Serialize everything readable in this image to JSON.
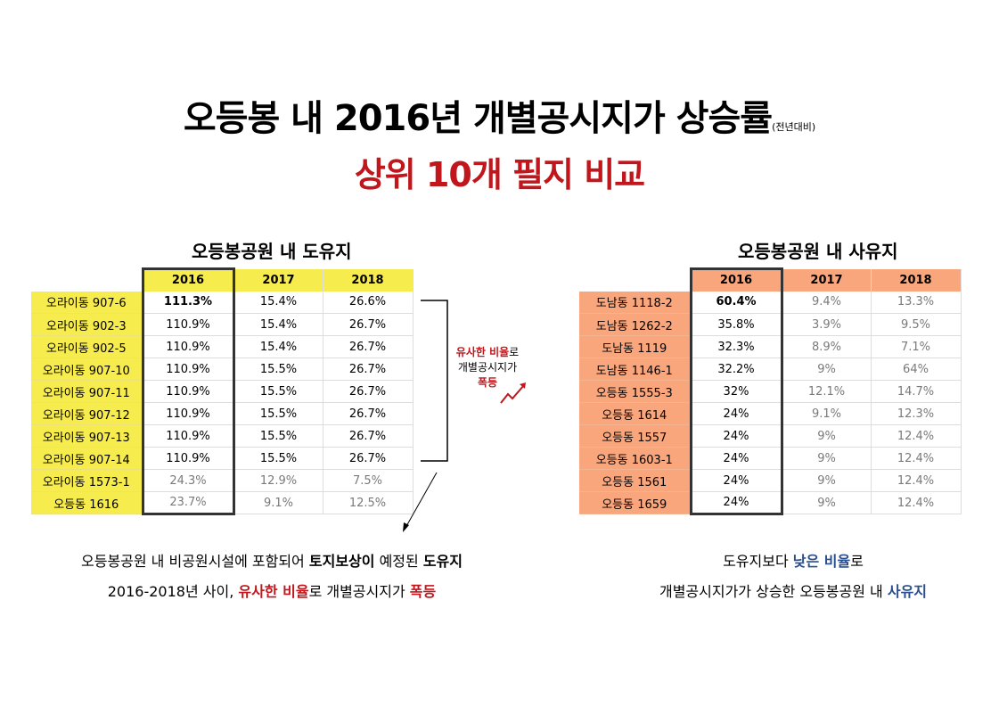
{
  "title": {
    "main": "오등봉 내 2016년 개별공시지가 상승률",
    "sub": "(전년대비)",
    "line2": "상위 10개 필지 비교"
  },
  "left": {
    "section_title": "오등봉공원 내 도유지",
    "headers": [
      "2016",
      "2017",
      "2018"
    ],
    "rows": [
      {
        "label": "오라이동 907-6",
        "v2016": "111.3%",
        "v2017": "15.4%",
        "v2018": "26.6%"
      },
      {
        "label": "오라이동 902-3",
        "v2016": "110.9%",
        "v2017": "15.4%",
        "v2018": "26.7%"
      },
      {
        "label": "오라이동 902-5",
        "v2016": "110.9%",
        "v2017": "15.4%",
        "v2018": "26.7%"
      },
      {
        "label": "오라이동 907-10",
        "v2016": "110.9%",
        "v2017": "15.5%",
        "v2018": "26.7%"
      },
      {
        "label": "오라이동 907-11",
        "v2016": "110.9%",
        "v2017": "15.5%",
        "v2018": "26.7%"
      },
      {
        "label": "오라이동 907-12",
        "v2016": "110.9%",
        "v2017": "15.5%",
        "v2018": "26.7%"
      },
      {
        "label": "오라이동 907-13",
        "v2016": "110.9%",
        "v2017": "15.5%",
        "v2018": "26.7%"
      },
      {
        "label": "오라이동 907-14",
        "v2016": "110.9%",
        "v2017": "15.5%",
        "v2018": "26.7%"
      },
      {
        "label": "오라이동 1573-1",
        "v2016": "24.3%",
        "v2017": "12.9%",
        "v2018": "7.5%"
      },
      {
        "label": "오등동 1616",
        "v2016": "23.7%",
        "v2017": "9.1%",
        "v2018": "12.5%"
      }
    ],
    "callout": {
      "red1": "유사한 비율",
      "black1": "로",
      "line2": "개별공시지가",
      "red2": "폭등"
    },
    "bottom": {
      "line1_a": "오등봉공원 내 비공원시설에 포함되어 ",
      "line1_b": "토지보상이",
      "line1_c": " 예정된 ",
      "line1_d": "도유지",
      "line2_a": "2016-2018년 사이, ",
      "line2_b": "유사한 비율",
      "line2_c": "로 개별공시지가 ",
      "line2_d": "폭등"
    }
  },
  "right": {
    "section_title": "오등봉공원 내 사유지",
    "headers": [
      "2016",
      "2017",
      "2018"
    ],
    "rows": [
      {
        "label": "도남동 1118-2",
        "v2016": "60.4%",
        "v2017": "9.4%",
        "v2018": "13.3%"
      },
      {
        "label": "도남동 1262-2",
        "v2016": "35.8%",
        "v2017": "3.9%",
        "v2018": "9.5%"
      },
      {
        "label": "도남동 1119",
        "v2016": "32.3%",
        "v2017": "8.9%",
        "v2018": "7.1%"
      },
      {
        "label": "도남동 1146-1",
        "v2016": "32.2%",
        "v2017": "9%",
        "v2018": "64%"
      },
      {
        "label": "오등동 1555-3",
        "v2016": "32%",
        "v2017": "12.1%",
        "v2018": "14.7%"
      },
      {
        "label": "오등동 1614",
        "v2016": "24%",
        "v2017": "9.1%",
        "v2018": "12.3%"
      },
      {
        "label": "오등동 1557",
        "v2016": "24%",
        "v2017": "9%",
        "v2018": "12.4%"
      },
      {
        "label": "오등동 1603-1",
        "v2016": "24%",
        "v2017": "9%",
        "v2018": "12.4%"
      },
      {
        "label": "오등동 1561",
        "v2016": "24%",
        "v2017": "9%",
        "v2018": "12.4%"
      },
      {
        "label": "오등동 1659",
        "v2016": "24%",
        "v2017": "9%",
        "v2018": "12.4%"
      }
    ],
    "bottom": {
      "line1_a": "도유지보다 ",
      "line1_b": "낮은 비율",
      "line1_c": "로",
      "line2_a": "개별공시지가가 상승한 오등봉공원 내 ",
      "line2_b": "사유지"
    }
  },
  "colors": {
    "accent_red": "#c0161c",
    "accent_blue": "#2a4f8f",
    "left_highlight": "#f7ec4e",
    "right_highlight": "#f9a67c"
  }
}
